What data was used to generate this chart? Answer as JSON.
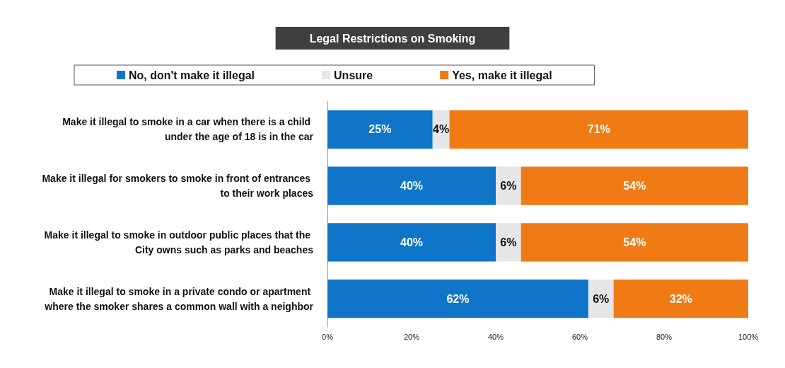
{
  "chart_data": {
    "type": "bar",
    "orientation": "horizontal",
    "stacked": true,
    "title": "Legal Restrictions on Smoking",
    "categories": [
      "Make it illegal to smoke in a car when there is a child under the age of 18 is in the car",
      "Make it illegal for smokers to smoke in front of entrances to their work places",
      "Make it illegal to smoke in outdoor public places that the City owns such as parks and beaches",
      "Make it illegal to smoke in a private condo or apartment where the smoker shares a common wall with a neighbor"
    ],
    "series": [
      {
        "name": "No, don't make it illegal",
        "color": "#0f75c8",
        "values": [
          25,
          40,
          40,
          62
        ],
        "value_labels": [
          "25%",
          "40%",
          "40%",
          "62%"
        ]
      },
      {
        "name": "Unsure",
        "color": "#e6e6e6",
        "values": [
          4,
          6,
          6,
          6
        ],
        "value_labels": [
          "4%",
          "6%",
          "6%",
          "6%"
        ]
      },
      {
        "name": "Yes, make it illegal",
        "color": "#f07b14",
        "values": [
          71,
          54,
          54,
          32
        ],
        "value_labels": [
          "71%",
          "54%",
          "54%",
          "32%"
        ]
      }
    ],
    "xlim": [
      0,
      100
    ],
    "xticks": [
      {
        "value": 0,
        "label": "0%"
      },
      {
        "value": 20,
        "label": "20%"
      },
      {
        "value": 40,
        "label": "40%"
      },
      {
        "value": 60,
        "label": "60%"
      },
      {
        "value": 80,
        "label": "80%"
      },
      {
        "value": 100,
        "label": "100%"
      }
    ],
    "grid": false,
    "legend": "top"
  }
}
